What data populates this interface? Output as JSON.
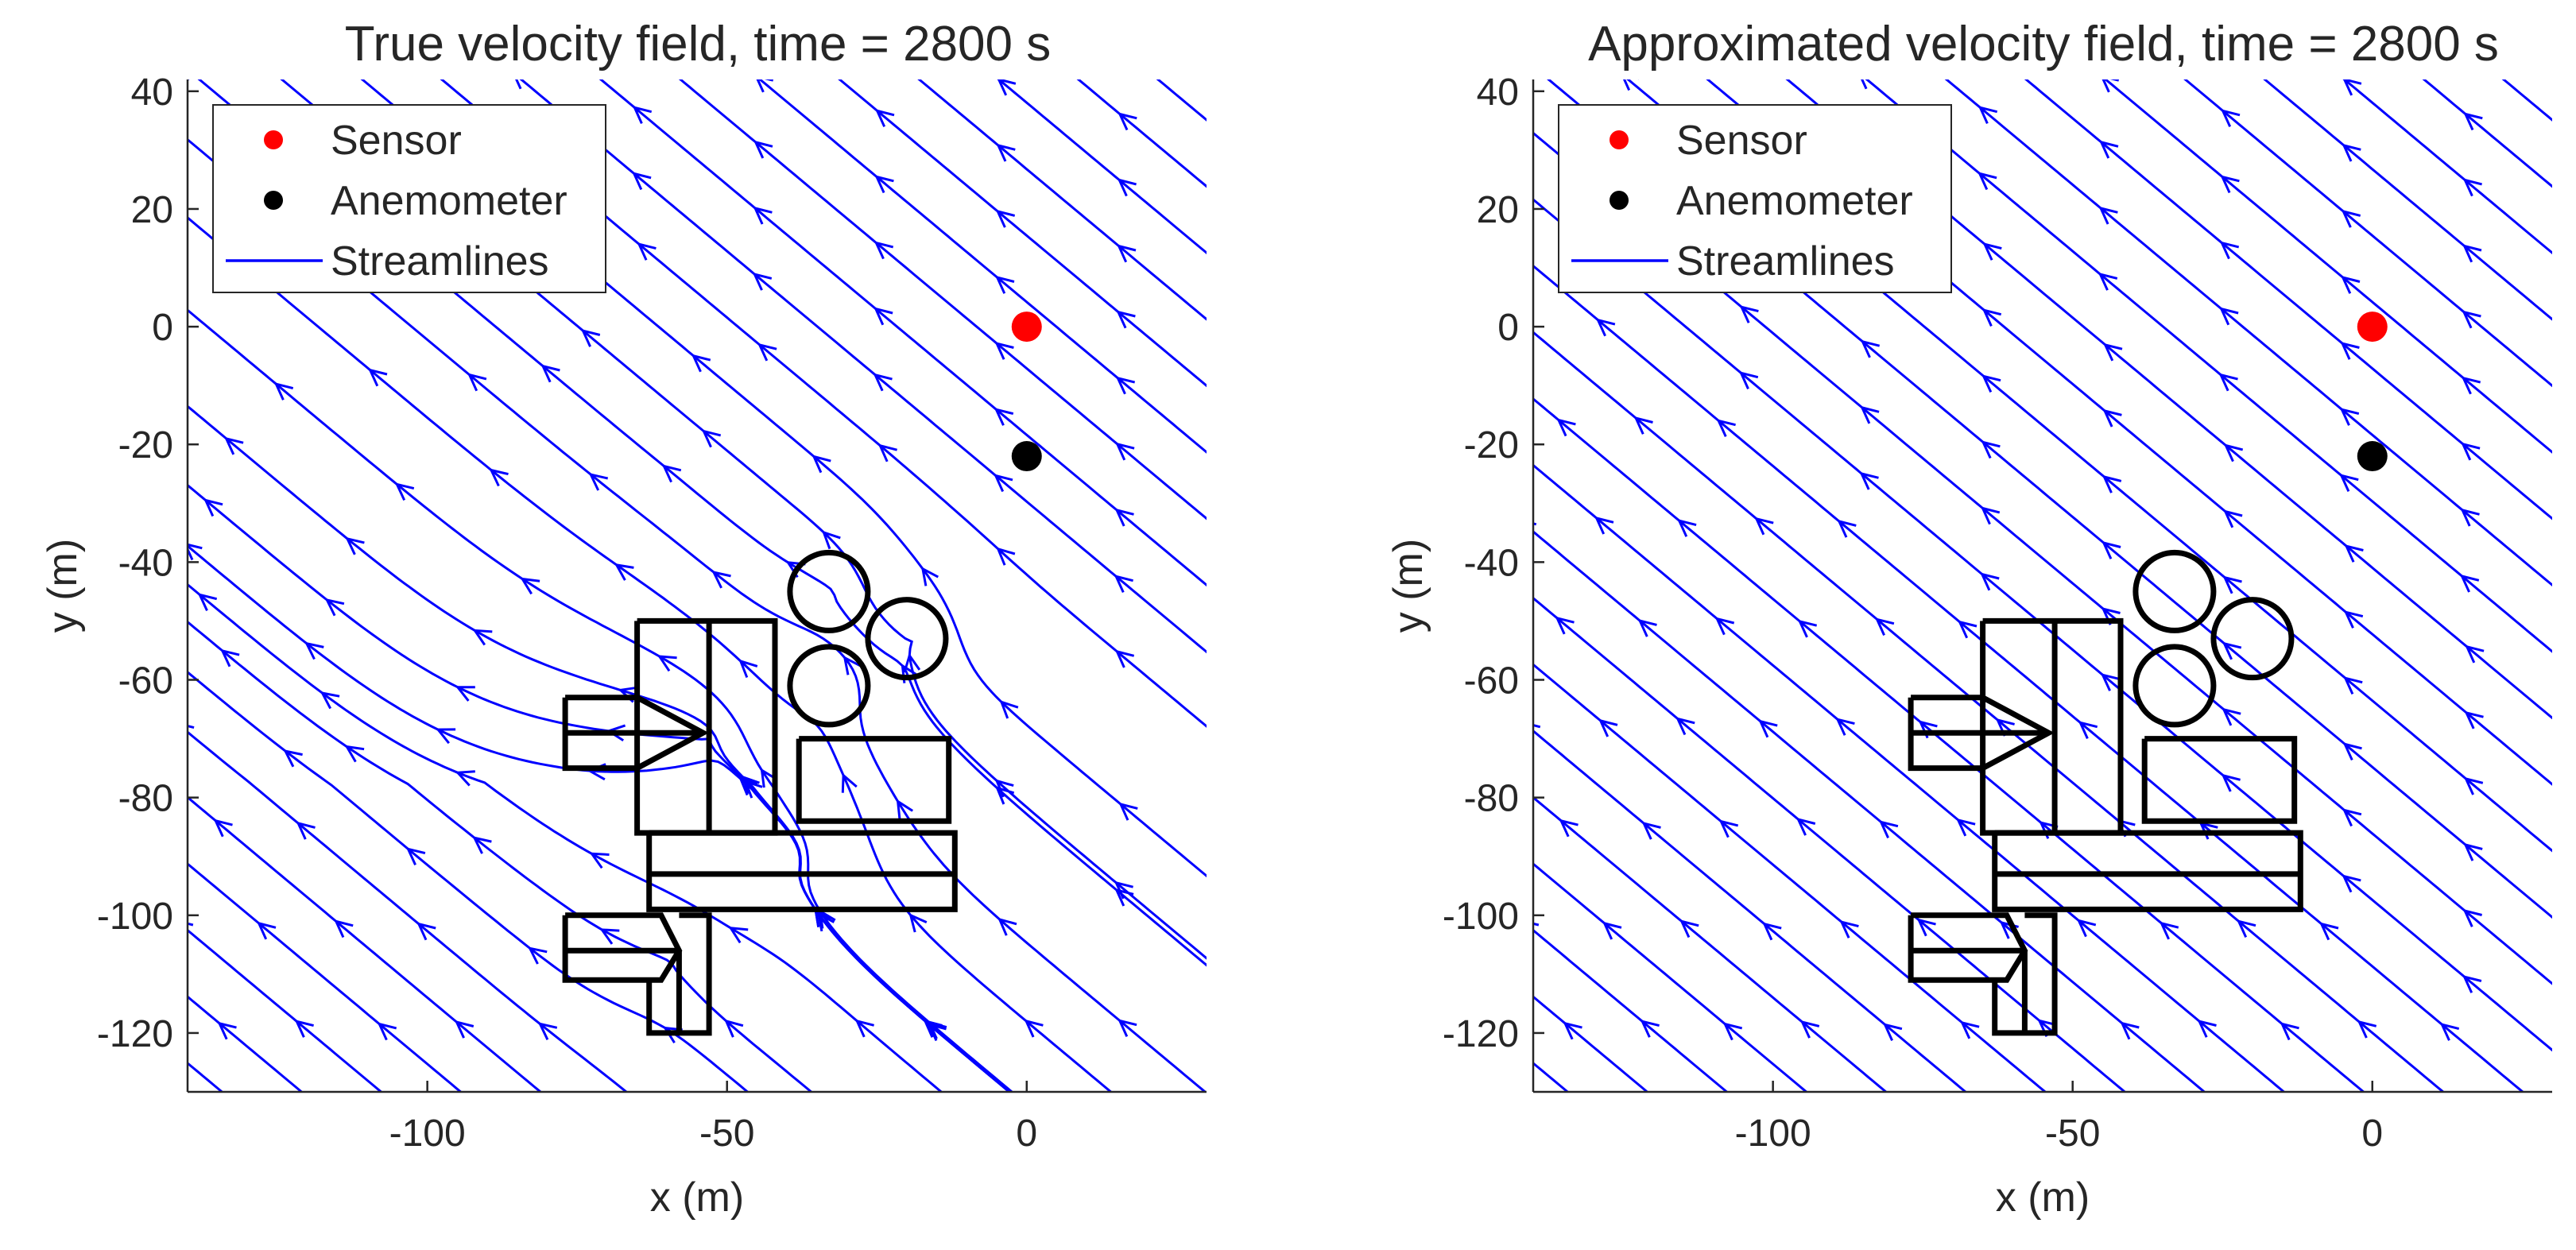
{
  "figure_colors": {
    "streamline": "#0000ff",
    "sensor": "#ff0000",
    "anemometer": "#000000",
    "building": "#000000",
    "axis": "#262626",
    "background": "#ffffff"
  },
  "chart_data": [
    {
      "type": "streamline",
      "title": "True velocity field, time = 2800 s",
      "xlabel": "x (m)",
      "ylabel": "y (m)",
      "xlim": [
        -140,
        30
      ],
      "ylim": [
        -130,
        42
      ],
      "xticks": [
        -100,
        -50,
        0
      ],
      "yticks": [
        40,
        20,
        0,
        -20,
        -40,
        -60,
        -80,
        -100,
        -120
      ],
      "xtick_labels": [
        "-100",
        "-50",
        "0"
      ],
      "ytick_labels": [
        "40",
        "20",
        "0",
        "-20",
        "-40",
        "-60",
        "-80",
        "-100",
        "-120"
      ],
      "legend": {
        "position": "top-left",
        "items": [
          {
            "label": "Sensor",
            "marker": "dot",
            "color": "#ff0000"
          },
          {
            "label": "Anemometer",
            "marker": "dot",
            "color": "#000000"
          },
          {
            "label": "Streamlines",
            "marker": "line",
            "color": "#0000ff"
          }
        ]
      },
      "points": {
        "sensor": {
          "x": 0,
          "y": 0
        },
        "anemometer": {
          "x": 0,
          "y": -22
        }
      },
      "flow": {
        "direction": "toward upper-left",
        "dx": -1,
        "dy": 0.85,
        "disturbed_by_buildings": true
      },
      "obstacles": {
        "polylines": [
          [
            [
              -65,
              -50
            ],
            [
              -65,
              -86
            ],
            [
              -42,
              -86
            ],
            [
              -42,
              -50
            ],
            [
              -65,
              -50
            ]
          ],
          [
            [
              -53,
              -50
            ],
            [
              -53,
              -86
            ]
          ],
          [
            [
              -77,
              -63
            ],
            [
              -65,
              -63
            ],
            [
              -54,
              -69
            ],
            [
              -65,
              -75
            ],
            [
              -77,
              -75
            ],
            [
              -77,
              -63
            ]
          ],
          [
            [
              -77,
              -69
            ],
            [
              -54,
              -69
            ]
          ],
          [
            [
              -38,
              -70
            ],
            [
              -13,
              -70
            ],
            [
              -13,
              -84
            ],
            [
              -38,
              -84
            ],
            [
              -38,
              -70
            ]
          ],
          [
            [
              -63,
              -86
            ],
            [
              -12,
              -86
            ],
            [
              -12,
              -99
            ],
            [
              -63,
              -99
            ],
            [
              -63,
              -86
            ]
          ],
          [
            [
              -63,
              -93
            ],
            [
              -12,
              -93
            ]
          ],
          [
            [
              -77,
              -100
            ],
            [
              -61,
              -100
            ],
            [
              -58,
              -106
            ],
            [
              -61,
              -111
            ],
            [
              -77,
              -111
            ],
            [
              -77,
              -100
            ]
          ],
          [
            [
              -77,
              -106
            ],
            [
              -58,
              -106
            ]
          ],
          [
            [
              -63,
              -111
            ],
            [
              -63,
              -120
            ],
            [
              -53,
              -120
            ],
            [
              -53,
              -100
            ],
            [
              -58,
              -100
            ]
          ],
          [
            [
              -58,
              -106
            ],
            [
              -58,
              -120
            ]
          ]
        ],
        "circles": [
          {
            "cx": -33,
            "cy": -45,
            "r": 6.5
          },
          {
            "cx": -20,
            "cy": -53,
            "r": 6.5
          },
          {
            "cx": -33,
            "cy": -61,
            "r": 6.5
          }
        ]
      }
    },
    {
      "type": "streamline",
      "title": "Approximated velocity field, time = 2800 s",
      "xlabel": "x (m)",
      "ylabel": "y (m)",
      "xlim": [
        -140,
        30
      ],
      "ylim": [
        -130,
        42
      ],
      "xticks": [
        -100,
        -50,
        0
      ],
      "yticks": [
        40,
        20,
        0,
        -20,
        -40,
        -60,
        -80,
        -100,
        -120
      ],
      "xtick_labels": [
        "-100",
        "-50",
        "0"
      ],
      "ytick_labels": [
        "40",
        "20",
        "0",
        "-20",
        "-40",
        "-60",
        "-80",
        "-100",
        "-120"
      ],
      "legend": {
        "position": "top-left",
        "items": [
          {
            "label": "Sensor",
            "marker": "dot",
            "color": "#ff0000"
          },
          {
            "label": "Anemometer",
            "marker": "dot",
            "color": "#000000"
          },
          {
            "label": "Streamlines",
            "marker": "line",
            "color": "#0000ff"
          }
        ]
      },
      "points": {
        "sensor": {
          "x": 0,
          "y": 0
        },
        "anemometer": {
          "x": 0,
          "y": -22
        }
      },
      "flow": {
        "direction": "toward upper-left",
        "dx": -1,
        "dy": 0.85,
        "disturbed_by_buildings": false
      },
      "obstacles": {
        "polylines": [
          [
            [
              -65,
              -50
            ],
            [
              -65,
              -86
            ],
            [
              -42,
              -86
            ],
            [
              -42,
              -50
            ],
            [
              -65,
              -50
            ]
          ],
          [
            [
              -53,
              -50
            ],
            [
              -53,
              -86
            ]
          ],
          [
            [
              -77,
              -63
            ],
            [
              -65,
              -63
            ],
            [
              -54,
              -69
            ],
            [
              -65,
              -75
            ],
            [
              -77,
              -75
            ],
            [
              -77,
              -63
            ]
          ],
          [
            [
              -77,
              -69
            ],
            [
              -54,
              -69
            ]
          ],
          [
            [
              -38,
              -70
            ],
            [
              -13,
              -70
            ],
            [
              -13,
              -84
            ],
            [
              -38,
              -84
            ],
            [
              -38,
              -70
            ]
          ],
          [
            [
              -63,
              -86
            ],
            [
              -12,
              -86
            ],
            [
              -12,
              -99
            ],
            [
              -63,
              -99
            ],
            [
              -63,
              -86
            ]
          ],
          [
            [
              -63,
              -93
            ],
            [
              -12,
              -93
            ]
          ],
          [
            [
              -77,
              -100
            ],
            [
              -61,
              -100
            ],
            [
              -58,
              -106
            ],
            [
              -61,
              -111
            ],
            [
              -77,
              -111
            ],
            [
              -77,
              -100
            ]
          ],
          [
            [
              -77,
              -106
            ],
            [
              -58,
              -106
            ]
          ],
          [
            [
              -63,
              -111
            ],
            [
              -63,
              -120
            ],
            [
              -53,
              -120
            ],
            [
              -53,
              -100
            ],
            [
              -58,
              -100
            ]
          ],
          [
            [
              -58,
              -106
            ],
            [
              -58,
              -120
            ]
          ]
        ],
        "circles": [
          {
            "cx": -33,
            "cy": -45,
            "r": 6.5
          },
          {
            "cx": -20,
            "cy": -53,
            "r": 6.5
          },
          {
            "cx": -33,
            "cy": -61,
            "r": 6.5
          }
        ]
      }
    }
  ]
}
